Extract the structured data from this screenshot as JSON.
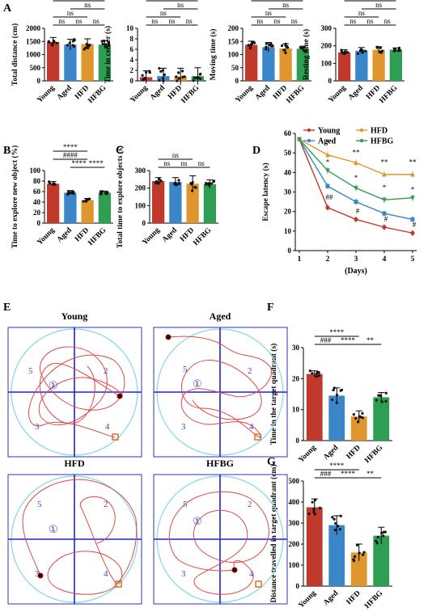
{
  "colors": {
    "young": "#c0392b",
    "aged": "#3a86c8",
    "hfd": "#e0962e",
    "hfbg": "#2e9e52",
    "swim_path": "#e04848",
    "quadrant_line": "#2222cc",
    "pool": "#7fd8e8",
    "frame": "#3333aa",
    "marker": "#e07020"
  },
  "chart_data": [
    {
      "panel_label": "A",
      "type": "bar",
      "categories": [
        "Young",
        "Aged",
        "HFD",
        "HFBG"
      ],
      "values": [
        1480,
        1380,
        1400,
        1380
      ],
      "errors": [
        170,
        200,
        200,
        150
      ],
      "ylabel": "Total distance (cm)",
      "ylim": [
        0,
        2000
      ],
      "yticks": [
        0,
        500,
        1000,
        1500,
        2000
      ],
      "sig": [
        {
          "a": 0,
          "b": 1,
          "text": "ns"
        },
        {
          "a": 1,
          "b": 2,
          "text": "ns"
        },
        {
          "a": 2,
          "b": 3,
          "text": "ns"
        },
        {
          "a": 0,
          "b": 2,
          "text": "ns"
        },
        {
          "a": 1,
          "b": 3,
          "text": "ns"
        },
        {
          "a": 0,
          "b": 3,
          "text": "ns"
        }
      ]
    },
    {
      "panel_label": "",
      "type": "bar",
      "categories": [
        "Young",
        "Aged",
        "HFD",
        "HFBG"
      ],
      "values": [
        0.7,
        0.9,
        0.8,
        0.9
      ],
      "errors": [
        1.2,
        1.5,
        1.6,
        1.6
      ],
      "ylabel": "Time in center (s)",
      "ylim": [
        0,
        10
      ],
      "yticks": [
        0,
        2,
        4,
        6,
        8,
        10
      ],
      "sig": [
        {
          "a": 0,
          "b": 1,
          "text": "ns"
        },
        {
          "a": 1,
          "b": 2,
          "text": "ns"
        },
        {
          "a": 2,
          "b": 3,
          "text": "ns"
        },
        {
          "a": 0,
          "b": 2,
          "text": "ns"
        },
        {
          "a": 1,
          "b": 3,
          "text": "ns"
        },
        {
          "a": 0,
          "b": 3,
          "text": "ns"
        }
      ]
    },
    {
      "panel_label": "",
      "type": "bar",
      "categories": [
        "Young",
        "Aged",
        "HFD",
        "HFBG"
      ],
      "values": [
        137,
        128,
        123,
        122
      ],
      "errors": [
        14,
        18,
        18,
        10
      ],
      "ylabel": "Moving time (s)",
      "ylim": [
        0,
        200
      ],
      "yticks": [
        0,
        50,
        100,
        150,
        200
      ],
      "sig": [
        {
          "a": 0,
          "b": 1,
          "text": "ns"
        },
        {
          "a": 1,
          "b": 2,
          "text": "ns"
        },
        {
          "a": 2,
          "b": 3,
          "text": "ns"
        },
        {
          "a": 0,
          "b": 2,
          "text": "ns"
        },
        {
          "a": 1,
          "b": 3,
          "text": "ns"
        },
        {
          "a": 0,
          "b": 3,
          "text": "ns"
        }
      ]
    },
    {
      "panel_label": "",
      "type": "bar",
      "categories": [
        "Young",
        "Aged",
        "HFD",
        "HFBG"
      ],
      "values": [
        163,
        172,
        177,
        178
      ],
      "errors": [
        15,
        18,
        18,
        10
      ],
      "ylabel": "Resting time (s)",
      "ylim": [
        0,
        300
      ],
      "yticks": [
        0,
        100,
        200,
        300
      ],
      "sig": [
        {
          "a": 0,
          "b": 1,
          "text": "ns"
        },
        {
          "a": 1,
          "b": 2,
          "text": "ns"
        },
        {
          "a": 2,
          "b": 3,
          "text": "ns"
        },
        {
          "a": 0,
          "b": 2,
          "text": "ns"
        },
        {
          "a": 1,
          "b": 3,
          "text": "ns"
        },
        {
          "a": 0,
          "b": 3,
          "text": "ns"
        }
      ]
    },
    {
      "panel_label": "B",
      "type": "bar",
      "categories": [
        "Young",
        "Aged",
        "HFD",
        "HFBG"
      ],
      "values": [
        75,
        58,
        44,
        58
      ],
      "errors": [
        4,
        4,
        3,
        3
      ],
      "ylabel": "Time to explore new object (%)",
      "ylim": [
        0,
        100
      ],
      "yticks": [
        0,
        20,
        40,
        60,
        80,
        100
      ],
      "sig": [
        {
          "a": 0,
          "b": 2,
          "text": "####"
        },
        {
          "a": 1,
          "b": 2,
          "text": "****"
        },
        {
          "a": 2,
          "b": 3,
          "text": "****"
        },
        {
          "a": 0,
          "b": 2,
          "text": "****"
        }
      ]
    },
    {
      "panel_label": "C",
      "type": "bar",
      "categories": [
        "Young",
        "Aged",
        "HFD",
        "HFBG"
      ],
      "values": [
        240,
        235,
        225,
        222
      ],
      "errors": [
        20,
        25,
        45,
        25
      ],
      "ylabel": "Total time to explore objects (s)",
      "ylim": [
        0,
        300
      ],
      "yticks": [
        0,
        100,
        200,
        300
      ],
      "sig": [
        {
          "a": 0,
          "b": 1,
          "text": "ns"
        },
        {
          "a": 1,
          "b": 2,
          "text": "ns"
        },
        {
          "a": 2,
          "b": 3,
          "text": "ns"
        },
        {
          "a": 0,
          "b": 2,
          "text": "ns"
        }
      ]
    },
    {
      "panel_label": "D",
      "type": "line",
      "xlabel": "(Days)",
      "ylabel": "Escape latency (s)",
      "x": [
        1,
        2,
        3,
        4,
        5
      ],
      "ylim": [
        0,
        60
      ],
      "yticks": [
        0,
        10,
        20,
        30,
        40,
        50,
        60
      ],
      "series": [
        {
          "name": "Young",
          "values": [
            57,
            22,
            16,
            12,
            9
          ]
        },
        {
          "name": "Aged",
          "values": [
            57,
            33,
            25,
            19,
            16
          ]
        },
        {
          "name": "HFD",
          "values": [
            57,
            49,
            45,
            39,
            39
          ]
        },
        {
          "name": "HFBG",
          "values": [
            57,
            41,
            32,
            26,
            27
          ]
        }
      ],
      "annotations": [
        {
          "x": 2,
          "y": 54,
          "text": "*"
        },
        {
          "x": 3,
          "y": 49,
          "text": "**"
        },
        {
          "x": 4,
          "y": 44,
          "text": "**"
        },
        {
          "x": 5,
          "y": 44,
          "text": "**"
        },
        {
          "x": 2,
          "y": 44,
          "text": "*"
        },
        {
          "x": 3,
          "y": 36,
          "text": "*"
        },
        {
          "x": 4,
          "y": 31,
          "text": "*"
        },
        {
          "x": 5,
          "y": 30,
          "text": "*"
        },
        {
          "x": 2,
          "y": 26,
          "text": "##"
        },
        {
          "x": 3,
          "y": 19,
          "text": "#"
        },
        {
          "x": 4,
          "y": 15,
          "text": "#"
        },
        {
          "x": 5,
          "y": 12,
          "text": "#"
        }
      ]
    },
    {
      "panel_label": "F",
      "type": "bar",
      "categories": [
        "Young",
        "Aged",
        "HFD",
        "HFBG"
      ],
      "values": [
        21.5,
        14.5,
        7.8,
        14
      ],
      "errors": [
        1,
        2.5,
        1.8,
        1.5
      ],
      "ylabel": "Time in the target quadrant (s)",
      "ylim": [
        0,
        30
      ],
      "yticks": [
        0,
        10,
        20,
        30
      ],
      "sig": [
        {
          "a": 0,
          "b": 1,
          "text": "###"
        },
        {
          "a": 1,
          "b": 2,
          "text": "****"
        },
        {
          "a": 2,
          "b": 3,
          "text": "**"
        },
        {
          "a": 0,
          "b": 2,
          "text": "****"
        }
      ]
    },
    {
      "panel_label": "G",
      "type": "bar",
      "categories": [
        "Young",
        "Aged",
        "HFD",
        "HFBG"
      ],
      "values": [
        375,
        290,
        160,
        240
      ],
      "errors": [
        40,
        45,
        40,
        40
      ],
      "ylabel": "Distance travelled in target quadrant (cm)",
      "ylim": [
        0,
        500
      ],
      "yticks": [
        0,
        100,
        200,
        300,
        400,
        500
      ],
      "sig": [
        {
          "a": 0,
          "b": 1,
          "text": "###"
        },
        {
          "a": 1,
          "b": 2,
          "text": "****"
        },
        {
          "a": 2,
          "b": 3,
          "text": "**"
        },
        {
          "a": 0,
          "b": 2,
          "text": "****"
        }
      ]
    }
  ],
  "panel_e": {
    "label": "E",
    "mazes": [
      {
        "title": "Young",
        "q5": "5",
        "q1": "①",
        "q2": "2",
        "q3": "3",
        "q4": "4"
      },
      {
        "title": "Aged",
        "q5": "5",
        "q1": "①",
        "q2": "2",
        "q3": "3",
        "q4": "4"
      },
      {
        "title": "HFD",
        "q5": "5",
        "q1": "①",
        "q2": "2",
        "q3": "3",
        "q4": "4"
      },
      {
        "title": "HFBG",
        "q5": "5",
        "q1": "①",
        "q2": "2",
        "q3": "3",
        "q4": "4"
      }
    ]
  }
}
